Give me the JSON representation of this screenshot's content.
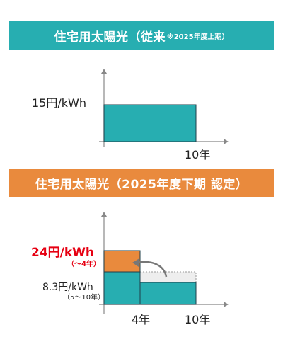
{
  "top_section": {
    "title": "住宅用太陽光（従来",
    "note": "※2025年度上期）",
    "price_label": "15円/kWh",
    "x_end_label": "10年",
    "bar_color": "#27aeb1"
  },
  "bottom_section": {
    "title": "住宅用太陽光（2025年度下期 認定）",
    "price_high_label": "24円/kWh",
    "price_high_period": "（～4年）",
    "price_low_label": "8.3円/kWh",
    "price_low_period": "（5～10年）",
    "x_mid_label": "4年",
    "x_end_label": "10年",
    "high_color": "#e98a3d",
    "low_color": "#27aeb1",
    "moved_area_color": "#eeeeee"
  },
  "colors": {
    "teal": "#27aeb1",
    "orange": "#e98a3d",
    "red_label": "#e60012"
  }
}
